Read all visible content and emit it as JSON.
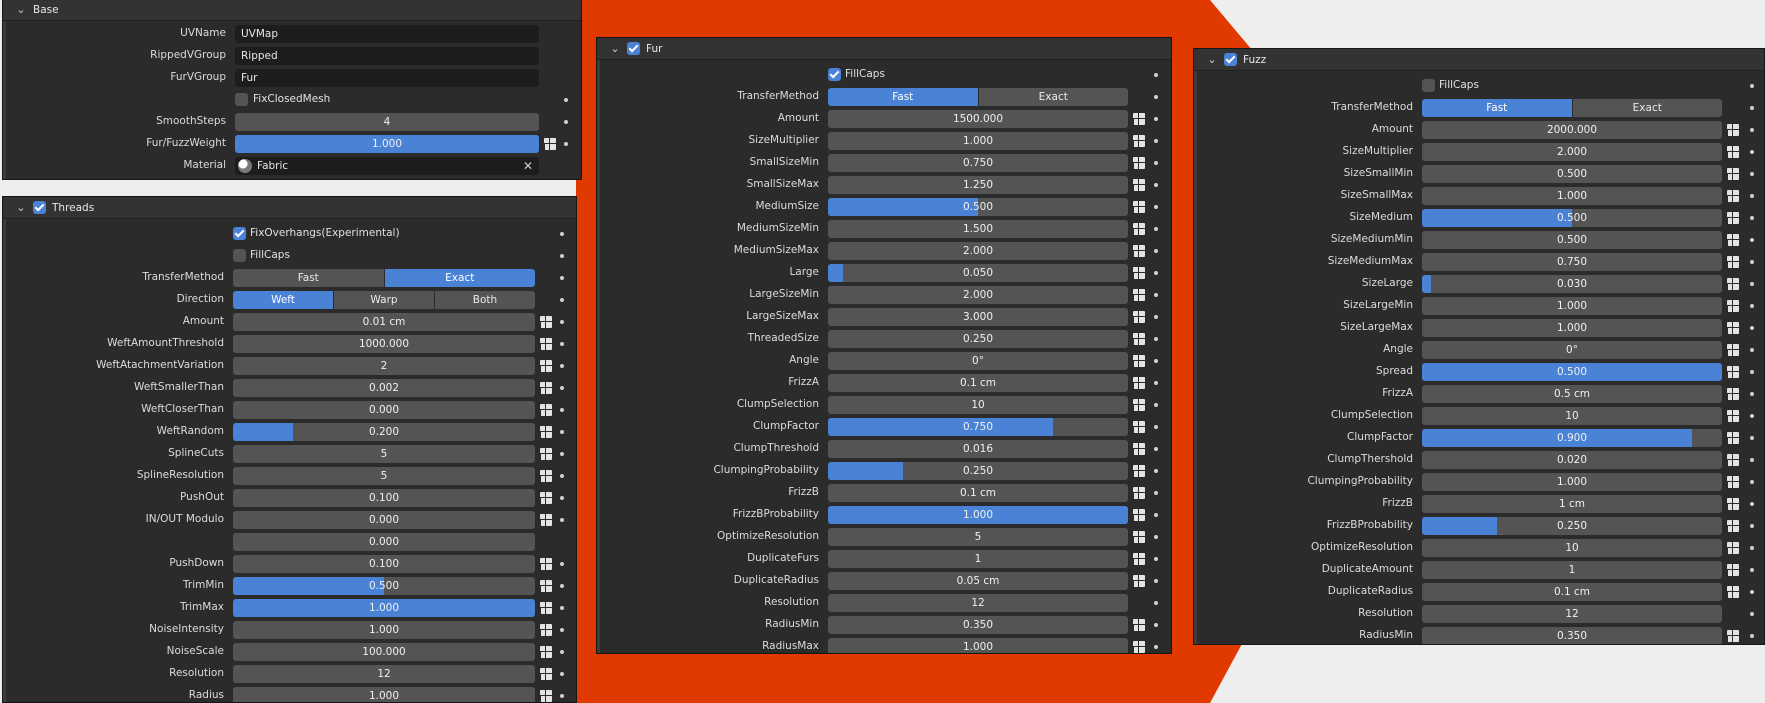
{
  "colors": {
    "accent": "#4a82d6",
    "backdrop": "#e03a00",
    "panel": "#2b2b2b",
    "field": "#545454"
  },
  "base": {
    "title": "Base",
    "uv_name": {
      "label": "UVName",
      "value": "UVMap"
    },
    "ripped_group": {
      "label": "RippedVGroup",
      "value": "Ripped"
    },
    "fur_group": {
      "label": "FurVGroup",
      "value": "Fur"
    },
    "fix_closed_mesh": {
      "label": "FixClosedMesh",
      "checked": false
    },
    "smooth_steps": {
      "label": "SmoothSteps",
      "value": "4"
    },
    "fur_fuzz_weight": {
      "label": "Fur/FuzzWeight",
      "value": "1.000",
      "fraction": 1.0
    },
    "material": {
      "label": "Material",
      "value": "Fabric",
      "icon": "material-sphere-icon"
    }
  },
  "threads": {
    "title": "Threads",
    "enabled": true,
    "fix_overhangs": {
      "label": "FixOverhangs(Experimental)",
      "checked": true
    },
    "fill_caps": {
      "label": "FillCaps",
      "checked": false
    },
    "transfer_method": {
      "label": "TransferMethod",
      "options": [
        "Fast",
        "Exact"
      ],
      "selected": "Exact"
    },
    "direction": {
      "label": "Direction",
      "options": [
        "Weft",
        "Warp",
        "Both"
      ],
      "selected": "Weft"
    },
    "rows": [
      {
        "label": "Amount",
        "value": "0.01 cm",
        "fill": 0
      },
      {
        "label": "WeftAmountThreshold",
        "value": "1000.000",
        "fill": 0
      },
      {
        "label": "WeftAtachmentVariation",
        "value": "2",
        "fill": 0
      },
      {
        "label": "WeftSmallerThan",
        "value": "0.002",
        "fill": 0
      },
      {
        "label": "WeftCloserThan",
        "value": "0.000",
        "fill": 0
      },
      {
        "label": "WeftRandom",
        "value": "0.200",
        "fill": 0.2
      },
      {
        "label": "SplineCuts",
        "value": "5",
        "fill": 0
      },
      {
        "label": "SplineResolution",
        "value": "5",
        "fill": 0
      },
      {
        "label": "PushOut",
        "value": "0.100",
        "fill": 0
      },
      {
        "label": "IN/OUT Modulo",
        "value": "0.000",
        "fill": 0
      },
      {
        "label": "",
        "value": "0.000",
        "fill": 0
      },
      {
        "label": "PushDown",
        "value": "0.100",
        "fill": 0
      },
      {
        "label": "TrimMin",
        "value": "0.500",
        "fill": 0.5
      },
      {
        "label": "TrimMax",
        "value": "1.000",
        "fill": 1.0
      },
      {
        "label": "NoiseIntensity",
        "value": "1.000",
        "fill": 0
      },
      {
        "label": "NoiseScale",
        "value": "100.000",
        "fill": 0
      },
      {
        "label": "Resolution",
        "value": "12",
        "fill": 0
      },
      {
        "label": "Radius",
        "value": "1.000",
        "fill": 0
      }
    ]
  },
  "fur": {
    "title": "Fur",
    "enabled": true,
    "fill_caps": {
      "label": "FillCaps",
      "checked": true
    },
    "transfer_method": {
      "label": "TransferMethod",
      "options": [
        "Fast",
        "Exact"
      ],
      "selected": "Fast"
    },
    "rows": [
      {
        "label": "Amount",
        "value": "1500.000",
        "fill": 0
      },
      {
        "label": "SizeMultiplier",
        "value": "1.000",
        "fill": 0
      },
      {
        "label": "SmallSizeMin",
        "value": "0.750",
        "fill": 0
      },
      {
        "label": "SmallSizeMax",
        "value": "1.250",
        "fill": 0
      },
      {
        "label": "MediumSize",
        "value": "0.500",
        "fill": 0.5
      },
      {
        "label": "MediumSizeMin",
        "value": "1.500",
        "fill": 0
      },
      {
        "label": "MediumSizeMax",
        "value": "2.000",
        "fill": 0
      },
      {
        "label": "Large",
        "value": "0.050",
        "fill": 0.05
      },
      {
        "label": "LargeSizeMin",
        "value": "2.000",
        "fill": 0
      },
      {
        "label": "LargeSizeMax",
        "value": "3.000",
        "fill": 0
      },
      {
        "label": "ThreadedSize",
        "value": "0.250",
        "fill": 0
      },
      {
        "label": "Angle",
        "value": "0°",
        "fill": 0
      },
      {
        "label": "FrizzA",
        "value": "0.1 cm",
        "fill": 0
      },
      {
        "label": "ClumpSelection",
        "value": "10",
        "fill": 0
      },
      {
        "label": "ClumpFactor",
        "value": "0.750",
        "fill": 0.75
      },
      {
        "label": "ClumpThreshold",
        "value": "0.016",
        "fill": 0
      },
      {
        "label": "ClumpingProbability",
        "value": "0.250",
        "fill": 0.25
      },
      {
        "label": "FrizzB",
        "value": "0.1 cm",
        "fill": 0
      },
      {
        "label": "FrizzBProbability",
        "value": "1.000",
        "fill": 1.0
      },
      {
        "label": "OptimizeResolution",
        "value": "5",
        "fill": 0
      },
      {
        "label": "DuplicateFurs",
        "value": "1",
        "fill": 0
      },
      {
        "label": "DuplicateRadius",
        "value": "0.05 cm",
        "fill": 0
      },
      {
        "label": "Resolution",
        "value": "12",
        "fill": 0,
        "nokey": true
      },
      {
        "label": "RadiusMin",
        "value": "0.350",
        "fill": 0
      },
      {
        "label": "RadiusMax",
        "value": "1.000",
        "fill": 0
      }
    ]
  },
  "fuzz": {
    "title": "Fuzz",
    "enabled": true,
    "fill_caps": {
      "label": "FillCaps",
      "checked": false
    },
    "transfer_method": {
      "label": "TransferMethod",
      "options": [
        "Fast",
        "Exact"
      ],
      "selected": "Fast"
    },
    "rows": [
      {
        "label": "Amount",
        "value": "2000.000",
        "fill": 0
      },
      {
        "label": "SizeMultiplier",
        "value": "2.000",
        "fill": 0
      },
      {
        "label": "SizeSmallMin",
        "value": "0.500",
        "fill": 0
      },
      {
        "label": "SizeSmallMax",
        "value": "1.000",
        "fill": 0
      },
      {
        "label": "SizeMedium",
        "value": "0.500",
        "fill": 0.5
      },
      {
        "label": "SizeMediumMin",
        "value": "0.500",
        "fill": 0
      },
      {
        "label": "SizeMediumMax",
        "value": "0.750",
        "fill": 0
      },
      {
        "label": "SizeLarge",
        "value": "0.030",
        "fill": 0.03
      },
      {
        "label": "SizeLargeMin",
        "value": "1.000",
        "fill": 0
      },
      {
        "label": "SizeLargeMax",
        "value": "1.000",
        "fill": 0
      },
      {
        "label": "Angle",
        "value": "0°",
        "fill": 0
      },
      {
        "label": "Spread",
        "value": "0.500",
        "fill": 1.0
      },
      {
        "label": "FrizzA",
        "value": "0.5 cm",
        "fill": 0
      },
      {
        "label": "ClumpSelection",
        "value": "10",
        "fill": 0
      },
      {
        "label": "ClumpFactor",
        "value": "0.900",
        "fill": 0.9
      },
      {
        "label": "ClumpThershold",
        "value": "0.020",
        "fill": 0
      },
      {
        "label": "ClumpingProbability",
        "value": "1.000",
        "fill": 0
      },
      {
        "label": "FrizzB",
        "value": "1 cm",
        "fill": 0
      },
      {
        "label": "FrizzBProbability",
        "value": "0.250",
        "fill": 0.25
      },
      {
        "label": "OptimizeResolution",
        "value": "10",
        "fill": 0
      },
      {
        "label": "DuplicateAmount",
        "value": "1",
        "fill": 0
      },
      {
        "label": "DuplicateRadius",
        "value": "0.1 cm",
        "fill": 0
      },
      {
        "label": "Resolution",
        "value": "12",
        "fill": 0,
        "nokey": true
      },
      {
        "label": "RadiusMin",
        "value": "0.350",
        "fill": 0
      }
    ]
  }
}
